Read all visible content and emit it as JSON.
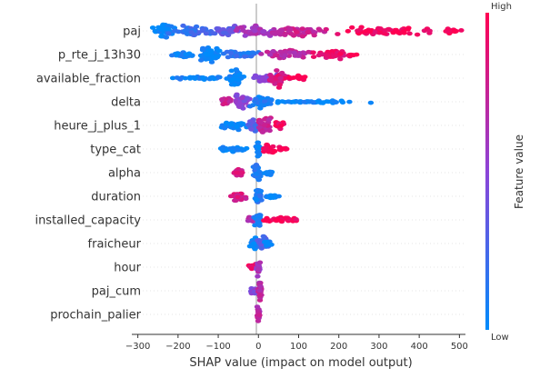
{
  "colors": {
    "low": "#008bfb",
    "high": "#ff0052",
    "zero_line": "#999999",
    "grid": "#cccccc"
  },
  "chart_data": {
    "type": "scatter",
    "subtype": "shap-beeswarm",
    "xlabel": "SHAP value (impact on model output)",
    "xlim": [
      -315,
      515
    ],
    "xticks": [
      -300,
      -200,
      -100,
      0,
      100,
      200,
      300,
      400,
      500
    ],
    "features": [
      {
        "name": "paj",
        "clusters": [
          {
            "center": -235,
            "spread": 25,
            "height": 0.6,
            "count": 50,
            "value": 0.02
          },
          {
            "center": -160,
            "spread": 40,
            "height": 0.5,
            "count": 50,
            "value": 0.2
          },
          {
            "center": -80,
            "spread": 40,
            "height": 0.45,
            "count": 40,
            "value": 0.35
          },
          {
            "center": 0,
            "spread": 55,
            "height": 0.5,
            "count": 50,
            "value": 0.6
          },
          {
            "center": 110,
            "spread": 70,
            "height": 0.45,
            "count": 50,
            "value": 0.75
          },
          {
            "center": 300,
            "spread": 120,
            "height": 0.35,
            "count": 60,
            "value": 0.95
          },
          {
            "center": 470,
            "spread": 30,
            "height": 0.2,
            "count": 15,
            "value": 1.0
          }
        ]
      },
      {
        "name": "p_rte_j_13h30",
        "clusters": [
          {
            "center": -120,
            "spread": 25,
            "height": 0.7,
            "count": 60,
            "value": 0.02
          },
          {
            "center": -190,
            "spread": 25,
            "height": 0.25,
            "count": 20,
            "value": 0.05
          },
          {
            "center": -40,
            "spread": 45,
            "height": 0.3,
            "count": 40,
            "value": 0.15
          },
          {
            "center": 70,
            "spread": 60,
            "height": 0.35,
            "count": 45,
            "value": 0.7
          },
          {
            "center": 180,
            "spread": 45,
            "height": 0.4,
            "count": 45,
            "value": 0.9
          },
          {
            "center": 235,
            "spread": 10,
            "height": 0.15,
            "count": 8,
            "value": 1.0
          }
        ]
      },
      {
        "name": "available_fraction",
        "clusters": [
          {
            "center": -55,
            "spread": 15,
            "height": 0.7,
            "count": 50,
            "value": 0.02
          },
          {
            "center": -140,
            "spread": 70,
            "height": 0.15,
            "count": 30,
            "value": 0.05
          },
          {
            "center": 20,
            "spread": 30,
            "height": 0.3,
            "count": 30,
            "value": 0.5
          },
          {
            "center": 50,
            "spread": 20,
            "height": 0.65,
            "count": 45,
            "value": 0.85
          },
          {
            "center": 100,
            "spread": 20,
            "height": 0.25,
            "count": 15,
            "value": 1.0
          }
        ]
      },
      {
        "name": "delta",
        "clusters": [
          {
            "center": -40,
            "spread": 15,
            "height": 0.6,
            "count": 40,
            "value": 0.5
          },
          {
            "center": -80,
            "spread": 15,
            "height": 0.3,
            "count": 20,
            "value": 0.75
          },
          {
            "center": 10,
            "spread": 25,
            "height": 0.55,
            "count": 40,
            "value": 0.1
          },
          {
            "center": 130,
            "spread": 110,
            "height": 0.15,
            "count": 45,
            "value": 0.02
          }
        ]
      },
      {
        "name": "heure_j_plus_1",
        "clusters": [
          {
            "center": -60,
            "spread": 35,
            "height": 0.3,
            "count": 35,
            "value": 0.05
          },
          {
            "center": -10,
            "spread": 15,
            "height": 0.6,
            "count": 35,
            "value": 0.3
          },
          {
            "center": 15,
            "spread": 15,
            "height": 0.7,
            "count": 40,
            "value": 0.75
          },
          {
            "center": 50,
            "spread": 15,
            "height": 0.35,
            "count": 20,
            "value": 0.95
          }
        ]
      },
      {
        "name": "type_cat",
        "clusters": [
          {
            "center": -60,
            "spread": 35,
            "height": 0.2,
            "count": 35,
            "value": 0.02
          },
          {
            "center": 0,
            "spread": 5,
            "height": 0.7,
            "count": 25,
            "value": 0.05
          },
          {
            "center": 25,
            "spread": 20,
            "height": 0.4,
            "count": 30,
            "value": 1.0
          },
          {
            "center": 60,
            "spread": 10,
            "height": 0.2,
            "count": 10,
            "value": 1.0
          }
        ]
      },
      {
        "name": "alpha",
        "clusters": [
          {
            "center": -50,
            "spread": 15,
            "height": 0.3,
            "count": 25,
            "value": 0.8
          },
          {
            "center": 0,
            "spread": 10,
            "height": 0.7,
            "count": 35,
            "value": 0.1
          },
          {
            "center": 25,
            "spread": 10,
            "height": 0.3,
            "count": 15,
            "value": 0.05
          }
        ]
      },
      {
        "name": "duration",
        "clusters": [
          {
            "center": -50,
            "spread": 15,
            "height": 0.35,
            "count": 25,
            "value": 0.8
          },
          {
            "center": 0,
            "spread": 8,
            "height": 0.7,
            "count": 30,
            "value": 0.1
          },
          {
            "center": 35,
            "spread": 20,
            "height": 0.2,
            "count": 20,
            "value": 0.02
          }
        ]
      },
      {
        "name": "installed_capacity",
        "clusters": [
          {
            "center": -20,
            "spread": 10,
            "height": 0.3,
            "count": 15,
            "value": 0.7
          },
          {
            "center": 0,
            "spread": 8,
            "height": 0.7,
            "count": 30,
            "value": 0.1
          },
          {
            "center": 55,
            "spread": 35,
            "height": 0.25,
            "count": 35,
            "value": 0.95
          }
        ]
      },
      {
        "name": "fraicheur",
        "clusters": [
          {
            "center": -10,
            "spread": 12,
            "height": 0.5,
            "count": 30,
            "value": 0.05
          },
          {
            "center": 10,
            "spread": 12,
            "height": 0.55,
            "count": 30,
            "value": 0.3
          },
          {
            "center": 25,
            "spread": 8,
            "height": 0.25,
            "count": 10,
            "value": 0.02
          }
        ]
      },
      {
        "name": "hour",
        "clusters": [
          {
            "center": -15,
            "spread": 10,
            "height": 0.3,
            "count": 15,
            "value": 0.9
          },
          {
            "center": 0,
            "spread": 4,
            "height": 0.7,
            "count": 25,
            "value": 0.6
          }
        ]
      },
      {
        "name": "paj_cum",
        "clusters": [
          {
            "center": -10,
            "spread": 8,
            "height": 0.3,
            "count": 15,
            "value": 0.5
          },
          {
            "center": 3,
            "spread": 4,
            "height": 0.7,
            "count": 25,
            "value": 0.7
          }
        ]
      },
      {
        "name": "prochain_palier",
        "clusters": [
          {
            "center": 0,
            "spread": 3,
            "height": 0.7,
            "count": 25,
            "value": 0.7
          }
        ]
      }
    ],
    "colorbar": {
      "title": "Feature value",
      "high_label": "High",
      "low_label": "Low"
    }
  }
}
